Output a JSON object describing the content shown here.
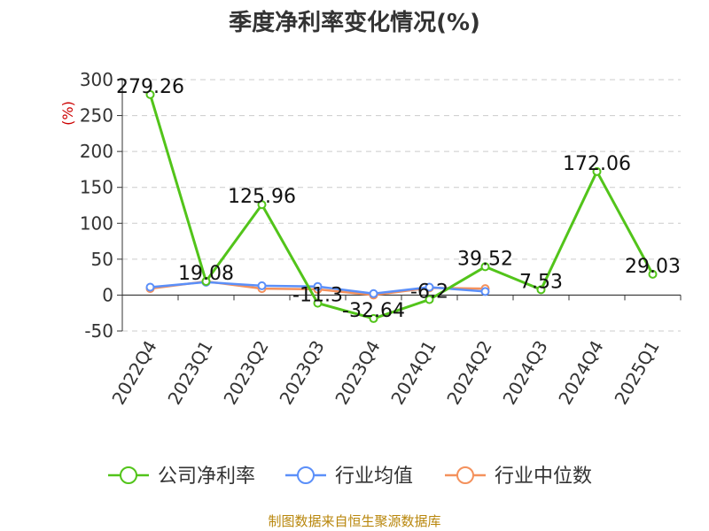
{
  "chart_data": {
    "type": "line",
    "title": "季度净利率变化情况(%)",
    "ylabel": "(%)",
    "categories": [
      "2022Q4",
      "2023Q1",
      "2023Q2",
      "2023Q3",
      "2023Q4",
      "2024Q1",
      "2024Q2",
      "2024Q3",
      "2024Q4",
      "2025Q1"
    ],
    "ylim": [
      -50,
      300
    ],
    "yticks": [
      -50,
      0,
      50,
      100,
      150,
      200,
      250,
      300
    ],
    "grid": true,
    "legend_position": "bottom",
    "series": [
      {
        "name": "公司净利率",
        "color": "#52c41a",
        "values": [
          279.26,
          19.08,
          125.96,
          -11.3,
          -32.64,
          -6.2,
          39.52,
          7.53,
          172.06,
          29.03
        ],
        "labels": [
          "279.26",
          "19.08",
          "125.96",
          "-11.3",
          "-32.64",
          "-6.2",
          "39.52",
          "7.53",
          "172.06",
          "29.03"
        ]
      },
      {
        "name": "行业均值",
        "color": "#5b8ff9",
        "values": [
          11,
          18,
          13,
          12,
          2,
          11,
          5,
          null,
          null,
          null
        ]
      },
      {
        "name": "行业中位数",
        "color": "#f4915c",
        "values": [
          9,
          19,
          9,
          8,
          0,
          10,
          9,
          null,
          null,
          null
        ]
      }
    ]
  },
  "source_text": "制图数据来自恒生聚源数据库"
}
